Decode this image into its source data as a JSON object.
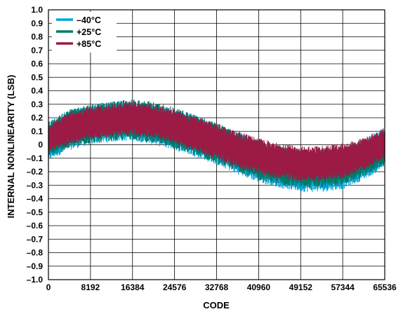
{
  "chart_data": {
    "type": "line",
    "title": "",
    "xlabel": "CODE",
    "ylabel": "INTERNAL NONLINEARITY (LSB)",
    "xlim": [
      0,
      65536
    ],
    "ylim": [
      -1.0,
      1.0
    ],
    "x_ticks": [
      0,
      8192,
      16384,
      24576,
      32768,
      40960,
      49152,
      57344,
      65536
    ],
    "x_tick_labels": [
      "0",
      "8192",
      "16384",
      "24576",
      "32768",
      "40960",
      "49152",
      "57344",
      "65536"
    ],
    "y_ticks": [
      1.0,
      0.9,
      0.8,
      0.7,
      0.6,
      0.5,
      0.4,
      0.3,
      0.2,
      0.1,
      0,
      -0.1,
      -0.2,
      -0.3,
      -0.4,
      -0.5,
      -0.6,
      -0.7,
      -0.8,
      -0.9,
      -1.0
    ],
    "y_tick_labels": [
      "1.0",
      "0.9",
      "0.8",
      "0.7",
      "0.6",
      "0.5",
      "0.4",
      "0.3",
      "0.2",
      "0.1",
      "0",
      "–0.1",
      "–0.2",
      "–0.3",
      "–0.4",
      "–0.5",
      "–0.6",
      "–0.7",
      "–0.8",
      "–0.9",
      "–1.0"
    ],
    "grid": true,
    "legend_position": "top-left",
    "series": [
      {
        "name": "–40°C",
        "color": "#00a3d9",
        "x": [
          0,
          4096,
          8192,
          12288,
          16384,
          20480,
          24576,
          28672,
          32768,
          36864,
          40960,
          45056,
          49152,
          53248,
          57344,
          61440,
          65536
        ],
        "upper": [
          0.18,
          0.26,
          0.3,
          0.32,
          0.33,
          0.31,
          0.27,
          0.22,
          0.16,
          0.09,
          0.03,
          -0.02,
          -0.04,
          -0.04,
          -0.02,
          0.04,
          0.13
        ],
        "lower": [
          -0.12,
          -0.04,
          0.0,
          0.02,
          0.03,
          0.0,
          -0.04,
          -0.09,
          -0.15,
          -0.22,
          -0.28,
          -0.32,
          -0.35,
          -0.35,
          -0.33,
          -0.26,
          -0.17
        ]
      },
      {
        "name": "+25°C",
        "color": "#007a66",
        "x": [
          0,
          4096,
          8192,
          12288,
          16384,
          20480,
          24576,
          28672,
          32768,
          36864,
          40960,
          45056,
          49152,
          53248,
          57344,
          61440,
          65536
        ],
        "upper": [
          0.17,
          0.26,
          0.3,
          0.32,
          0.34,
          0.32,
          0.28,
          0.22,
          0.16,
          0.1,
          0.04,
          -0.01,
          -0.03,
          -0.03,
          -0.01,
          0.04,
          0.12
        ],
        "lower": [
          -0.1,
          -0.03,
          0.01,
          0.03,
          0.04,
          0.01,
          -0.03,
          -0.08,
          -0.14,
          -0.2,
          -0.26,
          -0.3,
          -0.32,
          -0.32,
          -0.3,
          -0.24,
          -0.15
        ]
      },
      {
        "name": "+85°C",
        "color": "#9b1b45",
        "x": [
          0,
          4096,
          8192,
          12288,
          16384,
          20480,
          24576,
          28672,
          32768,
          36864,
          40960,
          45056,
          49152,
          53248,
          57344,
          61440,
          65536
        ],
        "upper": [
          0.15,
          0.24,
          0.28,
          0.3,
          0.32,
          0.3,
          0.26,
          0.21,
          0.16,
          0.1,
          0.05,
          0.01,
          -0.01,
          -0.01,
          0.01,
          0.05,
          0.13
        ],
        "lower": [
          -0.06,
          0.0,
          0.04,
          0.06,
          0.07,
          0.05,
          0.01,
          -0.05,
          -0.11,
          -0.17,
          -0.22,
          -0.25,
          -0.27,
          -0.27,
          -0.25,
          -0.19,
          -0.1
        ]
      }
    ]
  }
}
